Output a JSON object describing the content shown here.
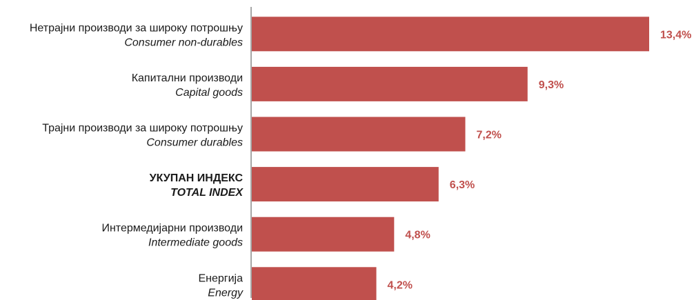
{
  "chart_data": {
    "type": "bar",
    "orientation": "horizontal",
    "categories": [
      {
        "label_sr": "Нетрајни производи за широку потрошњу",
        "label_en": "Consumer non-durables",
        "bold": false
      },
      {
        "label_sr": "Капитални производи",
        "label_en": "Capital goods",
        "bold": false
      },
      {
        "label_sr": "Трајни производи за широку потрошњу",
        "label_en": "Consumer durables",
        "bold": false
      },
      {
        "label_sr": "УКУПАН ИНДЕКС",
        "label_en": "TOTAL INDEX",
        "bold": true
      },
      {
        "label_sr": "Интермедијарни производи",
        "label_en": "Intermediate goods",
        "bold": false
      },
      {
        "label_sr": "Енергија",
        "label_en": "Energy",
        "bold": false
      }
    ],
    "values": [
      13.4,
      9.3,
      7.2,
      6.3,
      4.8,
      4.2
    ],
    "value_labels": [
      "13,4%",
      "9,3%",
      "7,2%",
      "6,3%",
      "4,8%",
      "4,2%"
    ],
    "xlim": [
      0,
      13.4
    ],
    "grid": false,
    "legend": "none",
    "bar_color": "#c0504d",
    "axis_color": "#a6a6a6"
  }
}
